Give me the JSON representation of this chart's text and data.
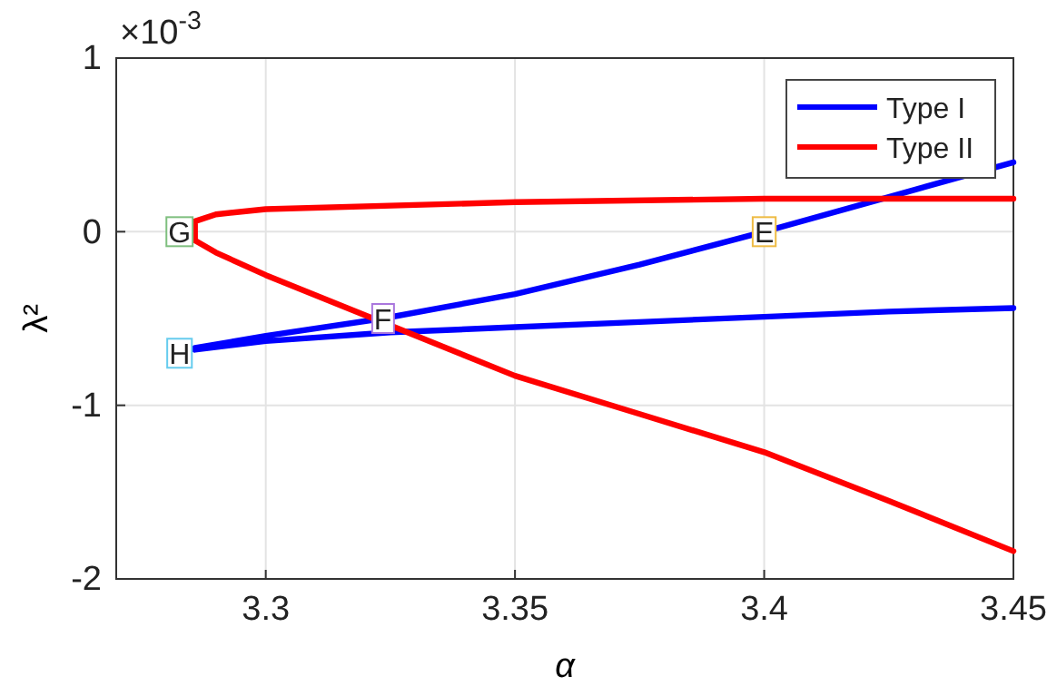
{
  "chart_data": {
    "type": "line",
    "xlabel": "α",
    "ylabel": "λ²",
    "xlim": [
      3.27,
      3.45
    ],
    "xticks": [
      3.3,
      3.35,
      3.4,
      3.45
    ],
    "ylim": [
      -2,
      1
    ],
    "yticks": [
      -2,
      -1,
      0,
      1
    ],
    "grid": true,
    "legend": "top right",
    "line_style": "solid",
    "marker": "none",
    "series": [
      {
        "name": "Type I",
        "color": "#0000ff",
        "x": [
          3.45,
          3.425,
          3.4,
          3.375,
          3.35,
          3.3235,
          3.3,
          3.2858,
          3.2858,
          3.3,
          3.325,
          3.35,
          3.375,
          3.4,
          3.425,
          3.45
        ],
        "values": [
          0.4,
          0.2,
          0.0,
          -0.19,
          -0.36,
          -0.5,
          -0.6,
          -0.67,
          -0.68,
          -0.63,
          -0.58,
          -0.55,
          -0.52,
          -0.49,
          -0.46,
          -0.44
        ]
      },
      {
        "name": "Type II",
        "color": "#ff0000",
        "x": [
          3.45,
          3.4,
          3.35,
          3.3,
          3.29,
          3.2858,
          3.2858,
          3.29,
          3.3,
          3.35,
          3.375,
          3.4,
          3.425,
          3.45
        ],
        "values": [
          0.19,
          0.19,
          0.17,
          0.13,
          0.1,
          0.06,
          -0.05,
          -0.12,
          -0.25,
          -0.83,
          -1.05,
          -1.27,
          -1.55,
          -1.84
        ]
      }
    ],
    "annotations": [
      "×10$^{-3}$",
      {
        "text": "G",
        "x": 3.2827,
        "y": 0
      },
      {
        "text": "H",
        "x": 3.2827,
        "y": -0.7
      },
      {
        "text": "F",
        "x": 3.3235,
        "y": -0.5
      },
      {
        "text": "E",
        "x": 3.4,
        "y": 0
      }
    ]
  }
}
